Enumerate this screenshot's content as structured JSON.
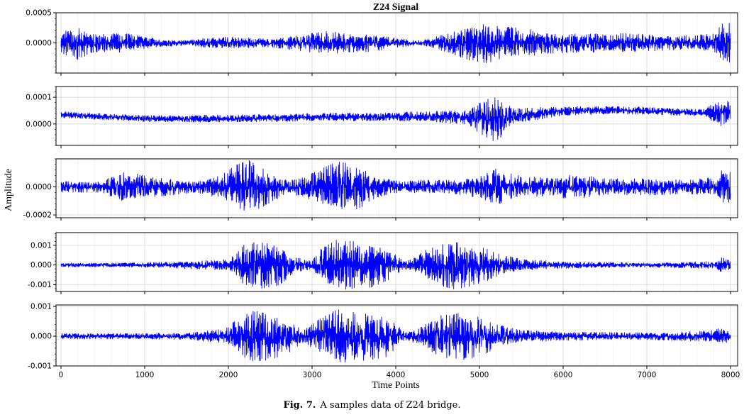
{
  "chart_data": {
    "type": "line",
    "title": "Z24 Signal",
    "xlabel": "Time Points",
    "ylabel": "Amplitude",
    "x_range": [
      0,
      8000
    ],
    "x_ticks": [
      0,
      1000,
      2000,
      3000,
      4000,
      5000,
      6000,
      7000,
      8000
    ],
    "grid": true,
    "color": "#0000ff",
    "subplots": [
      {
        "name": "channel-1",
        "ylim": [
          -0.0005,
          0.0005
        ],
        "y_ticks": [
          0.0005,
          0.0
        ],
        "y_tick_labels": [
          "0.0005",
          "0.0000"
        ],
        "offset": 0.0,
        "envelope": {
          "x": [
            0,
            100,
            200,
            400,
            700,
            1000,
            1200,
            1500,
            1700,
            2000,
            2500,
            3200,
            3400,
            3700,
            4000,
            4300,
            4600,
            4900,
            5100,
            5200,
            5500,
            5800,
            6200,
            6800,
            7300,
            7800,
            7950,
            8000
          ],
          "y": [
            0.0002,
            0.00022,
            0.00028,
            0.00015,
            0.00018,
            0.0001,
            6e-05,
            5e-05,
            8e-05,
            0.0001,
            7e-05,
            0.0002,
            0.00016,
            0.00015,
            8e-05,
            4e-05,
            0.00015,
            0.0003,
            0.00034,
            0.00028,
            0.00025,
            0.00018,
            0.00016,
            0.00016,
            0.00012,
            0.00015,
            0.0004,
            0.0003
          ]
        }
      },
      {
        "name": "channel-2",
        "ylim": [
          -8e-05,
          0.00014
        ],
        "y_ticks": [
          0.0001,
          0.0
        ],
        "y_tick_labels": [
          "0.0001",
          "0.0000"
        ],
        "offset_trend": {
          "x": [
            0,
            1000,
            2000,
            3000,
            4000,
            5000,
            5200,
            6000,
            7000,
            7800,
            8000
          ],
          "y": [
            3.5e-05,
            2e-05,
            2e-05,
            2.5e-05,
            2.8e-05,
            2.5e-05,
            2e-05,
            5e-05,
            5e-05,
            4e-05,
            4e-05
          ]
        },
        "envelope": {
          "x": [
            0,
            1000,
            2000,
            3000,
            4000,
            4800,
            5000,
            5200,
            5400,
            6000,
            7000,
            7700,
            7800,
            7900,
            8000
          ],
          "y": [
            1.2e-05,
            1.2e-05,
            1.4e-05,
            1.5e-05,
            1.6e-05,
            2.5e-05,
            6e-05,
            9e-05,
            3e-05,
            1.8e-05,
            1.4e-05,
            1.4e-05,
            4e-05,
            6e-05,
            4e-05
          ]
        }
      },
      {
        "name": "channel-3",
        "ylim": [
          -0.00022,
          0.0002
        ],
        "y_ticks": [
          0.0,
          -0.0002
        ],
        "y_tick_labels": [
          "0.0000",
          "-0.0002"
        ],
        "offset": 0.0,
        "envelope": {
          "x": [
            0,
            500,
            750,
            1000,
            1300,
            1600,
            1900,
            2100,
            2250,
            2450,
            2700,
            2900,
            3150,
            3300,
            3550,
            3800,
            4050,
            4300,
            4700,
            5000,
            5200,
            5500,
            5900,
            6100,
            6500,
            7000,
            7500,
            7800,
            7950,
            8000
          ],
          "y": [
            4e-05,
            4e-05,
            0.00012,
            8e-05,
            6e-05,
            4e-05,
            8e-05,
            0.00016,
            0.00019,
            0.00013,
            5e-05,
            7e-05,
            0.00014,
            0.00018,
            0.00016,
            7e-05,
            4e-05,
            5e-05,
            5e-05,
            8e-05,
            0.00013,
            8e-05,
            6e-05,
            0.0001,
            6e-05,
            6e-05,
            5e-05,
            7e-05,
            0.00015,
            0.0001
          ]
        }
      },
      {
        "name": "channel-4",
        "ylim": [
          -0.00135,
          0.00165
        ],
        "y_ticks": [
          0.001,
          0.0,
          -0.001
        ],
        "y_tick_labels": [
          "0.001",
          "0.000",
          "-0.001"
        ],
        "offset": 0.0,
        "envelope": {
          "x": [
            0,
            1000,
            1500,
            1800,
            2000,
            2100,
            2200,
            2400,
            2600,
            2800,
            3000,
            3100,
            3300,
            3500,
            3700,
            3900,
            4100,
            4200,
            4400,
            4700,
            5000,
            5200,
            5500,
            6000,
            7000,
            7800,
            7900,
            8000
          ],
          "y": [
            0.0001,
            0.00012,
            0.0002,
            0.00025,
            0.0003,
            0.0006,
            0.0011,
            0.0012,
            0.00105,
            0.0004,
            0.0002,
            0.0008,
            0.0013,
            0.0012,
            0.00115,
            0.0008,
            0.00022,
            0.0003,
            0.0009,
            0.00125,
            0.001,
            0.0006,
            0.0003,
            0.00018,
            0.00012,
            0.0002,
            0.0004,
            0.0002
          ]
        }
      },
      {
        "name": "channel-5",
        "ylim": [
          -0.001,
          0.00105
        ],
        "y_ticks": [
          0.001,
          0.0,
          -0.001
        ],
        "y_tick_labels": [
          "0.001",
          "0.000",
          "-0.001"
        ],
        "offset": 0.0,
        "envelope": {
          "x": [
            0,
            1000,
            1500,
            1800,
            2000,
            2100,
            2300,
            2500,
            2700,
            2900,
            3100,
            3300,
            3500,
            3700,
            3900,
            4100,
            4300,
            4500,
            4800,
            5000,
            5200,
            5500,
            6000,
            7000,
            7800,
            7900,
            8000
          ],
          "y": [
            0.0001,
            0.0001,
            0.00012,
            0.0002,
            0.0003,
            0.0006,
            0.00085,
            0.0008,
            0.0006,
            0.0002,
            0.0006,
            0.0009,
            0.00085,
            0.0008,
            0.0007,
            0.00015,
            0.0003,
            0.0007,
            0.0008,
            0.0007,
            0.0004,
            0.0002,
            0.00015,
            0.00012,
            0.0002,
            0.0003,
            0.00015
          ]
        }
      }
    ]
  },
  "caption": {
    "label": "Fig. 7.",
    "text": "A samples data of Z24 bridge."
  }
}
